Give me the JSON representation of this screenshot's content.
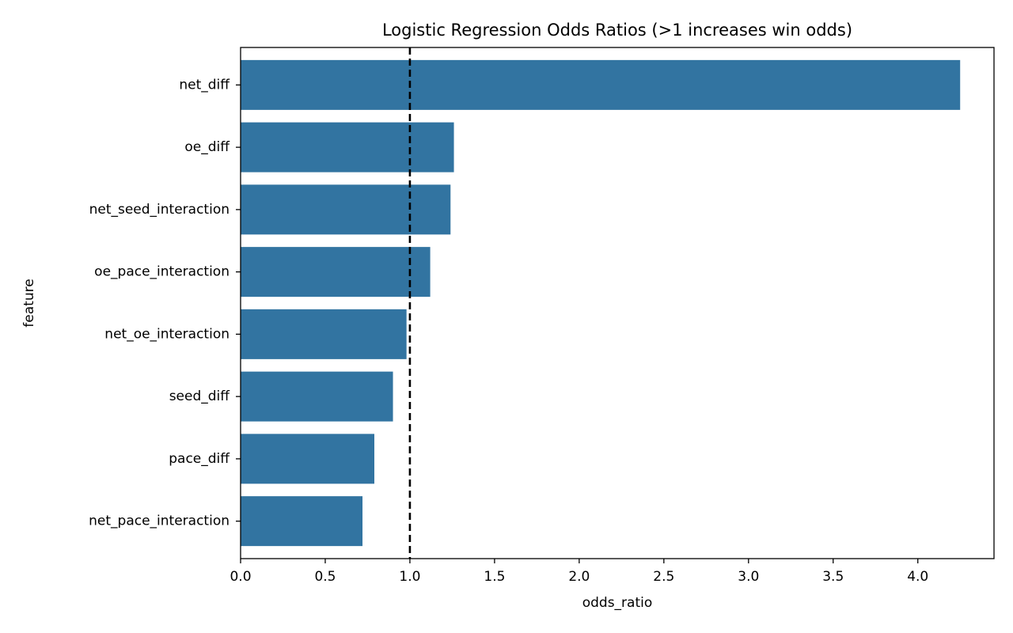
{
  "chart_data": {
    "type": "bar",
    "orientation": "horizontal",
    "title": "Logistic Regression Odds Ratios (>1 increases win odds)",
    "xlabel": "odds_ratio",
    "ylabel": "feature",
    "categories": [
      "net_diff",
      "oe_diff",
      "net_seed_interaction",
      "oe_pace_interaction",
      "net_oe_interaction",
      "seed_diff",
      "pace_diff",
      "net_pace_interaction"
    ],
    "values": [
      4.25,
      1.26,
      1.24,
      1.12,
      0.98,
      0.9,
      0.79,
      0.72
    ],
    "xlim": [
      0,
      4.45
    ],
    "xticks": [
      0.0,
      0.5,
      1.0,
      1.5,
      2.0,
      2.5,
      3.0,
      3.5,
      4.0
    ],
    "xtick_labels": [
      "0.0",
      "0.5",
      "1.0",
      "1.5",
      "2.0",
      "2.5",
      "3.0",
      "3.5",
      "4.0"
    ],
    "reference_line": {
      "x": 1.0,
      "style": "dashed",
      "color": "#000000"
    },
    "bar_color": "#3274a1",
    "grid": false,
    "legend": "none"
  }
}
